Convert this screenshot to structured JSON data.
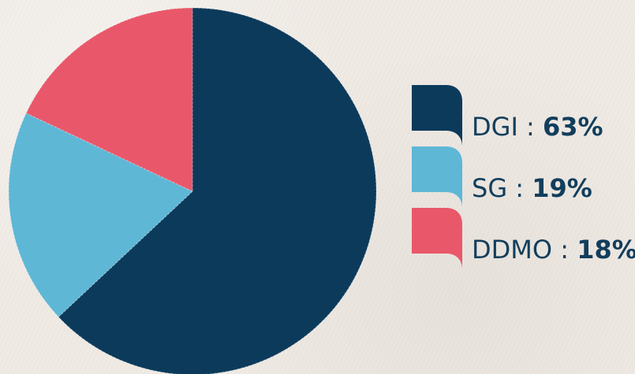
{
  "chart_data": {
    "type": "pie",
    "slices": [
      {
        "label": "DGI",
        "value": 63,
        "value_label": "63%",
        "color": "#0c3a5b"
      },
      {
        "label": "SG",
        "value": 19,
        "value_label": "19%",
        "color": "#5fb7d6"
      },
      {
        "label": "DDMO",
        "value": 18,
        "value_label": "18%",
        "color": "#e9586a"
      }
    ],
    "separator": " : ",
    "legend_position": "right"
  }
}
